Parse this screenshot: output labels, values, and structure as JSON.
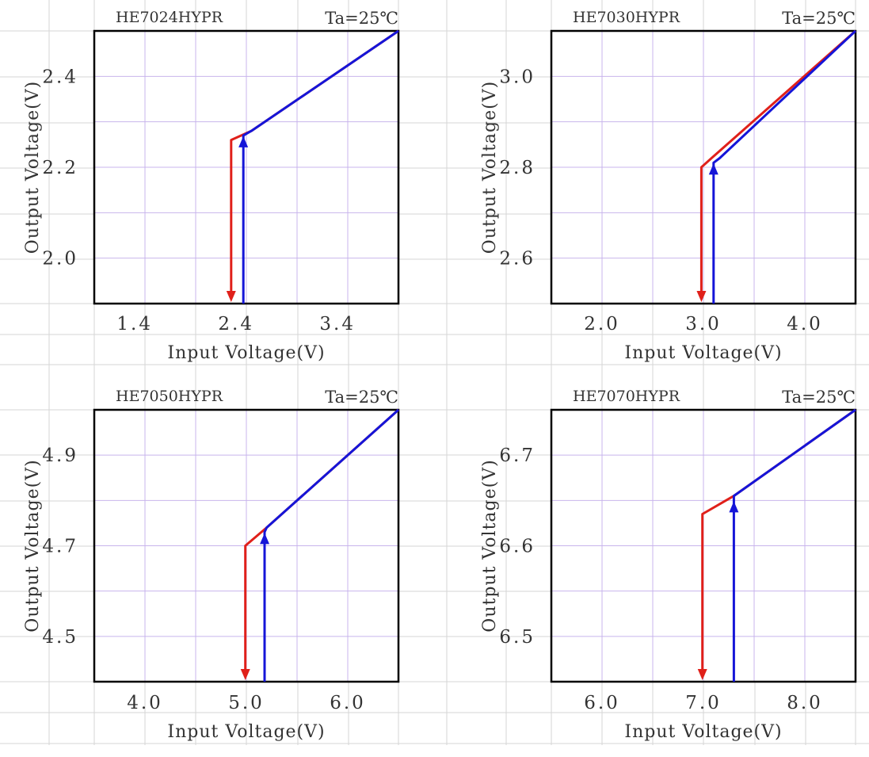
{
  "colors": {
    "background": "#ffffff",
    "outer_grid": "#d6d6d6",
    "inner_grid": "#c8b4ec",
    "frame": "#000000",
    "falling_trace": "#e0201a",
    "rising_trace": "#1515d8",
    "text": "#333333"
  },
  "chart_data": [
    {
      "type": "line",
      "title": "HE7024HYPR",
      "condition": "Ta=25℃",
      "xlabel": "Input Voltage(V)",
      "ylabel": "Output Voltage(V)",
      "xlim": [
        1.0,
        4.0
      ],
      "ylim": [
        1.9,
        2.5
      ],
      "x_ticks": [
        1.4,
        2.4,
        3.4
      ],
      "x_tick_labels": [
        "1.4",
        "2.4",
        "3.4"
      ],
      "y_ticks": [
        2.0,
        2.2,
        2.4
      ],
      "y_tick_labels": [
        "2.0",
        "2.2",
        "2.4"
      ],
      "x_grid_step": 0.5,
      "y_grid_step": 0.1,
      "grid": true,
      "series": [
        {
          "color": "#e0201a",
          "points": [
            [
              4.0,
              2.5
            ],
            [
              2.55,
              2.28
            ],
            [
              2.35,
              2.26
            ],
            [
              2.35,
              1.9
            ]
          ],
          "direction": "down"
        },
        {
          "color": "#1515d8",
          "points": [
            [
              2.47,
              1.9
            ],
            [
              2.47,
              2.27
            ],
            [
              2.55,
              2.28
            ],
            [
              4.0,
              2.5
            ]
          ],
          "direction": "up"
        }
      ]
    },
    {
      "type": "line",
      "title": "HE7030HYPR",
      "condition": "Ta=25℃",
      "xlabel": "Input Voltage(V)",
      "ylabel": "Output Voltage(V)",
      "xlim": [
        1.5,
        4.5
      ],
      "ylim": [
        2.5,
        3.1
      ],
      "x_ticks": [
        2.0,
        3.0,
        4.0
      ],
      "x_tick_labels": [
        "2.0",
        "3.0",
        "4.0"
      ],
      "y_ticks": [
        2.6,
        2.8,
        3.0
      ],
      "y_tick_labels": [
        "2.6",
        "2.8",
        "3.0"
      ],
      "x_grid_step": 0.5,
      "y_grid_step": 0.1,
      "grid": true,
      "series": [
        {
          "color": "#e0201a",
          "points": [
            [
              4.5,
              3.1
            ],
            [
              3.08,
              2.82
            ],
            [
              2.98,
              2.8
            ],
            [
              2.98,
              2.5
            ]
          ],
          "direction": "down"
        },
        {
          "color": "#1515d8",
          "points": [
            [
              3.1,
              2.5
            ],
            [
              3.1,
              2.81
            ],
            [
              3.16,
              2.82
            ],
            [
              4.5,
              3.1
            ]
          ],
          "direction": "up"
        }
      ]
    },
    {
      "type": "line",
      "title": "HE7050HYPR",
      "condition": "Ta=25℃",
      "xlabel": "Input Voltage(V)",
      "ylabel": "Output Voltage(V)",
      "xlim": [
        3.5,
        6.5
      ],
      "ylim": [
        4.4,
        5.0
      ],
      "x_ticks": [
        4.0,
        5.0,
        6.0
      ],
      "x_tick_labels": [
        "4.0",
        "5.0",
        "6.0"
      ],
      "y_ticks": [
        4.5,
        4.7,
        4.9
      ],
      "y_tick_labels": [
        "4.5",
        "4.7",
        "4.9"
      ],
      "x_grid_step": 0.5,
      "y_grid_step": 0.1,
      "grid": true,
      "series": [
        {
          "color": "#e0201a",
          "points": [
            [
              6.5,
              5.0
            ],
            [
              5.2,
              4.74
            ],
            [
              4.99,
              4.7
            ],
            [
              4.99,
              4.4
            ]
          ],
          "direction": "down"
        },
        {
          "color": "#1515d8",
          "points": [
            [
              5.18,
              4.4
            ],
            [
              5.18,
              4.73
            ],
            [
              5.2,
              4.74
            ],
            [
              6.5,
              5.0
            ]
          ],
          "direction": "up"
        }
      ]
    },
    {
      "type": "line",
      "title": "HE7070HYPR",
      "condition": "Ta=25℃",
      "xlabel": "Input Voltage(V)",
      "ylabel": "Output Voltage(V)",
      "xlim": [
        5.5,
        8.5
      ],
      "ylim": [
        6.45,
        6.75
      ],
      "x_ticks": [
        6.0,
        7.0,
        8.0
      ],
      "x_tick_labels": [
        "6.0",
        "7.0",
        "8.0"
      ],
      "y_ticks": [
        6.5,
        6.6,
        6.7
      ],
      "y_tick_labels": [
        "6.5",
        "6.6",
        "6.7"
      ],
      "x_grid_step": 0.5,
      "y_grid_step": 0.05,
      "grid": true,
      "series": [
        {
          "color": "#e0201a",
          "points": [
            [
              8.5,
              6.75
            ],
            [
              7.3,
              6.655
            ],
            [
              6.99,
              6.635
            ],
            [
              6.99,
              6.45
            ]
          ],
          "direction": "down"
        },
        {
          "color": "#1515d8",
          "points": [
            [
              7.3,
              6.45
            ],
            [
              7.3,
              6.65
            ],
            [
              7.3,
              6.655
            ],
            [
              8.5,
              6.75
            ]
          ],
          "direction": "up"
        }
      ]
    }
  ]
}
